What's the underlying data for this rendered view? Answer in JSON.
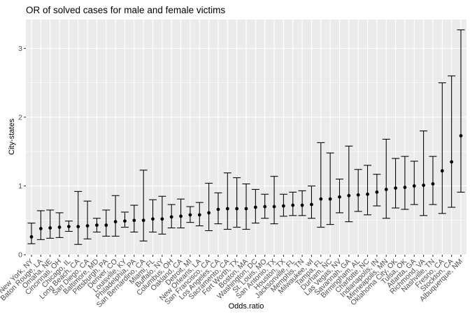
{
  "chart_data": {
    "type": "scatter",
    "subtype": "point-with-errorbars",
    "title": "OR of solved cases for male and female victims",
    "xlabel": "Odds.ratio",
    "ylabel": "City-states",
    "ylim": [
      0,
      3.42
    ],
    "yticks": [
      0,
      1,
      2,
      3
    ],
    "grid": true,
    "legend": "none",
    "categories": [
      "New York, NY",
      "Baton Rouge, LA",
      "Omaha, NE",
      "Cincinnati, OH",
      "Chicago, IL",
      "Long Beach, CA",
      "San Diego, CA",
      "Baltimore, MD",
      "Pittsburgh, PA",
      "Denver, CO",
      "Louisville, KY",
      "Philadelphia, PA",
      "San Bernardino, CA",
      "Miami, FL",
      "Buffalo, NY",
      "Columbus, OH",
      "Oakland, CA",
      "Detroit, MI",
      "New Orleans, LA",
      "San Francisco, CA",
      "Los Angeles, CA",
      "Sacramento, CA",
      "Fort Worth, TX",
      "Boston, MA",
      "Washington, DC",
      "St. Louis, MO",
      "San Antonio, TX",
      "Houston, TX",
      "Jacksonville, FL",
      "Memphis, TN",
      "Milwaukee, wI",
      "Tampa, FL",
      "Durham, NC",
      "Las Vegas, NV",
      "Savannah, GA",
      "Birmingham, AL",
      "Charlotte, NC",
      "Indianapolis, IN",
      "Minneapolis, MN",
      "Oklahoma City, OK",
      "Tulsa, OK",
      "Atlanta, GA",
      "Richmond, VA",
      "Nashville, TN",
      "Fresno, CA",
      "Stockton, CA",
      "Albuquerque, NM"
    ],
    "estimate": [
      0.26,
      0.38,
      0.39,
      0.4,
      0.41,
      0.41,
      0.42,
      0.43,
      0.43,
      0.48,
      0.49,
      0.5,
      0.5,
      0.52,
      0.52,
      0.55,
      0.56,
      0.58,
      0.58,
      0.61,
      0.66,
      0.67,
      0.67,
      0.67,
      0.69,
      0.7,
      0.7,
      0.71,
      0.72,
      0.72,
      0.73,
      0.81,
      0.81,
      0.84,
      0.86,
      0.87,
      0.88,
      0.91,
      0.95,
      0.97,
      0.98,
      1.0,
      1.01,
      1.03,
      1.22,
      1.35,
      1.73
    ],
    "conf_low": [
      0.16,
      0.22,
      0.24,
      0.25,
      0.34,
      0.15,
      0.23,
      0.33,
      0.27,
      0.27,
      0.4,
      0.33,
      0.2,
      0.33,
      0.3,
      0.39,
      0.39,
      0.47,
      0.42,
      0.35,
      0.45,
      0.37,
      0.4,
      0.37,
      0.46,
      0.53,
      0.45,
      0.56,
      0.57,
      0.57,
      0.53,
      0.4,
      0.44,
      0.61,
      0.48,
      0.63,
      0.58,
      0.71,
      0.53,
      0.68,
      0.66,
      0.73,
      0.57,
      0.73,
      0.6,
      0.69,
      0.91
    ],
    "conf_high": [
      0.46,
      0.64,
      0.65,
      0.61,
      0.49,
      0.92,
      0.78,
      0.53,
      0.65,
      0.86,
      0.62,
      0.72,
      1.23,
      0.8,
      0.85,
      0.73,
      0.81,
      0.7,
      0.76,
      1.04,
      0.9,
      1.19,
      1.12,
      1.03,
      0.95,
      0.88,
      1.14,
      0.88,
      0.91,
      0.93,
      1.0,
      1.63,
      1.48,
      1.1,
      1.58,
      1.24,
      1.3,
      1.17,
      1.68,
      1.4,
      1.43,
      1.36,
      1.8,
      1.43,
      2.5,
      2.6,
      3.27
    ]
  }
}
